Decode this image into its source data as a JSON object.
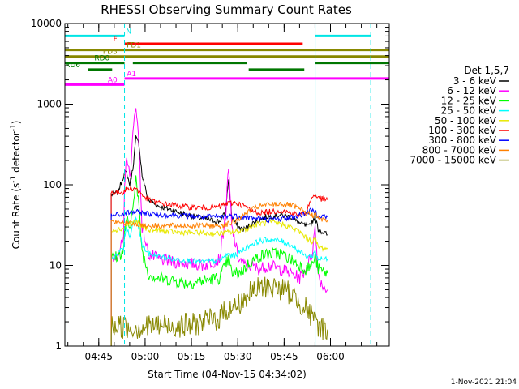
{
  "chart_data": {
    "type": "line",
    "title": "RHESSI Observing Summary Count Rates",
    "xlabel": "Start Time (04-Nov-15 04:34:02)",
    "ylabel_main": "Count Rate (s",
    "ylabel_sup1": "-1",
    "ylabel_mid": " detector",
    "ylabel_sup2": "-1",
    "ylabel_end": ")",
    "y_scale": "log",
    "ylim": [
      1,
      10000
    ],
    "xlim_minutes": [
      0,
      105
    ],
    "y_ticks": [
      {
        "v": 1,
        "label": "1"
      },
      {
        "v": 10,
        "label": "10"
      },
      {
        "v": 100,
        "label": "100"
      },
      {
        "v": 1000,
        "label": "1000"
      },
      {
        "v": 10000,
        "label": "10000"
      }
    ],
    "x_ticks": [
      {
        "m": 10.97,
        "label": "04:45"
      },
      {
        "m": 25.97,
        "label": "05:00"
      },
      {
        "m": 40.97,
        "label": "05:15"
      },
      {
        "m": 55.97,
        "label": "05:30"
      },
      {
        "m": 70.97,
        "label": "05:45"
      },
      {
        "m": 85.97,
        "label": "06:00"
      }
    ],
    "legend_title": "Det 1,5,7",
    "legend_position": "right",
    "grid": false,
    "timestamp": "1-Nov-2021 21:04",
    "vlines": [
      {
        "m": 0.4,
        "color": "#00e5e5",
        "dash": false
      },
      {
        "m": 19.3,
        "color": "#00e5e5",
        "dash": true
      },
      {
        "m": 81.0,
        "color": "#00e5e5",
        "dash": false
      },
      {
        "m": 99.0,
        "color": "#00e5e5",
        "dash": true
      }
    ],
    "flags": [
      {
        "label": "N",
        "color": "#00e5e5",
        "segments": [
          [
            0,
            19.3
          ],
          [
            81.0,
            99.0
          ]
        ],
        "level": 7000,
        "label_side": "right",
        "label_m": 19.8
      },
      {
        "label": "F",
        "color": "#ff0000",
        "segments": [
          [
            19.3,
            77.0
          ]
        ],
        "level": 5600,
        "label_side": "left",
        "label_m": 17.0
      },
      {
        "label": "FD1",
        "color": "#888800",
        "segments": [
          [
            0,
            105
          ]
        ],
        "level": 4700,
        "label_side": "right",
        "label_m": 20.0
      },
      {
        "label": "FD3",
        "color": "#888800",
        "segments": [
          [
            0,
            105
          ]
        ],
        "level": 3900,
        "label_side": "left",
        "label_m": 17.0
      },
      {
        "label": "RD0",
        "color": "#007700",
        "segments": [
          [
            0,
            19.3
          ],
          [
            22.0,
            59.0
          ],
          [
            81.0,
            105
          ]
        ],
        "level": 3250,
        "label_side": "left",
        "label_m": 14.5
      },
      {
        "label": "RD6",
        "color": "#007700",
        "segments": [
          [
            7.5,
            15.3
          ],
          [
            59.5,
            77.5
          ]
        ],
        "level": 2680,
        "label_side": "left",
        "label_m": 5.0
      },
      {
        "label": "A0",
        "color": "#ff00ff",
        "segments": [
          [
            0,
            19.3
          ]
        ],
        "level": 1750,
        "label_side": "left",
        "label_m": 17.0
      },
      {
        "label": "A1",
        "color": "#ff00ff",
        "segments": [
          [
            19.3,
            105
          ]
        ],
        "level": 2080,
        "label_side": "right",
        "label_m": 20.0
      }
    ],
    "series": [
      {
        "name": "3 - 6 keV",
        "color": "#000000",
        "points": [
          [
            15.0,
            75
          ],
          [
            17,
            80
          ],
          [
            18,
            100
          ],
          [
            19.3,
            140
          ],
          [
            20,
            140
          ],
          [
            21,
            100
          ],
          [
            22,
            160
          ],
          [
            23,
            380
          ],
          [
            24,
            320
          ],
          [
            25,
            130
          ],
          [
            27,
            65
          ],
          [
            30,
            55
          ],
          [
            35,
            48
          ],
          [
            40,
            42
          ],
          [
            45,
            38
          ],
          [
            50,
            35
          ],
          [
            52,
            45
          ],
          [
            53,
            120
          ],
          [
            54,
            40
          ],
          [
            56,
            30
          ],
          [
            58,
            28
          ],
          [
            60,
            32
          ],
          [
            65,
            40
          ],
          [
            70,
            42
          ],
          [
            73,
            40
          ],
          [
            75,
            35
          ],
          [
            77,
            32
          ],
          [
            79,
            30
          ],
          [
            80,
            35
          ],
          [
            81,
            40
          ],
          [
            82,
            28
          ],
          [
            85,
            24
          ]
        ]
      },
      {
        "name": "6 - 12 keV",
        "color": "#ff00ff",
        "points": [
          [
            15.0,
            12
          ],
          [
            17,
            14
          ],
          [
            19,
            20
          ],
          [
            19.3,
            80
          ],
          [
            20,
            250
          ],
          [
            21,
            120
          ],
          [
            22,
            400
          ],
          [
            23,
            1050
          ],
          [
            24,
            300
          ],
          [
            25,
            30
          ],
          [
            27,
            14
          ],
          [
            30,
            12
          ],
          [
            35,
            11
          ],
          [
            40,
            10.5
          ],
          [
            45,
            10
          ],
          [
            50,
            12
          ],
          [
            52,
            40
          ],
          [
            53,
            160
          ],
          [
            54,
            30
          ],
          [
            56,
            13
          ],
          [
            58,
            10
          ],
          [
            60,
            10
          ],
          [
            63,
            9
          ],
          [
            66,
            10
          ],
          [
            70,
            9
          ],
          [
            73,
            8
          ],
          [
            76,
            7
          ],
          [
            78,
            9
          ],
          [
            80,
            14
          ],
          [
            81,
            30
          ],
          [
            82,
            8
          ],
          [
            83,
            6
          ],
          [
            85,
            5
          ]
        ]
      },
      {
        "name": "12 - 25 keV",
        "color": "#00ff00",
        "points": [
          [
            15.0,
            12
          ],
          [
            17,
            13
          ],
          [
            19,
            15
          ],
          [
            19.3,
            25
          ],
          [
            20,
            40
          ],
          [
            21,
            25
          ],
          [
            22,
            60
          ],
          [
            23,
            120
          ],
          [
            24,
            50
          ],
          [
            25,
            15
          ],
          [
            27,
            8
          ],
          [
            30,
            7
          ],
          [
            35,
            6.5
          ],
          [
            40,
            6
          ],
          [
            45,
            6.5
          ],
          [
            50,
            7
          ],
          [
            52,
            10
          ],
          [
            53,
            12
          ],
          [
            54,
            8
          ],
          [
            56,
            8
          ],
          [
            58,
            9
          ],
          [
            60,
            11
          ],
          [
            63,
            13
          ],
          [
            66,
            14
          ],
          [
            70,
            14
          ],
          [
            73,
            12
          ],
          [
            76,
            10
          ],
          [
            78,
            9
          ],
          [
            80,
            10
          ],
          [
            81,
            13
          ],
          [
            82,
            9
          ],
          [
            85,
            8
          ]
        ]
      },
      {
        "name": "25 - 50 keV",
        "color": "#00ffff",
        "points": [
          [
            15.0,
            12
          ],
          [
            17,
            14
          ],
          [
            19,
            16
          ],
          [
            19.3,
            22
          ],
          [
            20,
            30
          ],
          [
            21,
            22
          ],
          [
            22,
            32
          ],
          [
            23,
            38
          ],
          [
            24,
            28
          ],
          [
            25,
            18
          ],
          [
            27,
            14
          ],
          [
            30,
            13
          ],
          [
            35,
            12
          ],
          [
            40,
            11.5
          ],
          [
            45,
            11
          ],
          [
            50,
            11.5
          ],
          [
            52,
            13
          ],
          [
            53,
            14
          ],
          [
            54,
            13
          ],
          [
            56,
            14
          ],
          [
            58,
            16
          ],
          [
            60,
            18
          ],
          [
            63,
            20
          ],
          [
            66,
            21
          ],
          [
            70,
            20
          ],
          [
            73,
            18
          ],
          [
            76,
            15
          ],
          [
            78,
            13
          ],
          [
            80,
            13
          ],
          [
            81,
            15
          ],
          [
            82,
            12
          ],
          [
            85,
            12
          ]
        ]
      },
      {
        "name": "50 - 100 keV",
        "color": "#e8e800",
        "points": [
          [
            15.0,
            28
          ],
          [
            17,
            28
          ],
          [
            19,
            29
          ],
          [
            19.3,
            30
          ],
          [
            20,
            32
          ],
          [
            22,
            34
          ],
          [
            23,
            35
          ],
          [
            25,
            30
          ],
          [
            27,
            28
          ],
          [
            30,
            27
          ],
          [
            35,
            26
          ],
          [
            40,
            25.5
          ],
          [
            45,
            25
          ],
          [
            50,
            25
          ],
          [
            52,
            25.5
          ],
          [
            55,
            26
          ],
          [
            58,
            28
          ],
          [
            60,
            30
          ],
          [
            63,
            33
          ],
          [
            66,
            34
          ],
          [
            70,
            33
          ],
          [
            73,
            30
          ],
          [
            76,
            26
          ],
          [
            78,
            22
          ],
          [
            80,
            20
          ],
          [
            81,
            21
          ],
          [
            82,
            17
          ],
          [
            85,
            16
          ]
        ]
      },
      {
        "name": "100 - 300 keV",
        "color": "#ff0000",
        "points": [
          [
            15.0,
            80
          ],
          [
            17,
            80
          ],
          [
            19,
            82
          ],
          [
            19.3,
            85
          ],
          [
            20,
            88
          ],
          [
            22,
            90
          ],
          [
            23,
            90
          ],
          [
            25,
            75
          ],
          [
            27,
            65
          ],
          [
            30,
            60
          ],
          [
            35,
            56
          ],
          [
            40,
            53
          ],
          [
            45,
            52
          ],
          [
            50,
            53
          ],
          [
            52,
            58
          ],
          [
            55,
            60
          ],
          [
            58,
            55
          ],
          [
            60,
            48
          ],
          [
            63,
            45
          ],
          [
            66,
            46
          ],
          [
            70,
            48
          ],
          [
            73,
            45
          ],
          [
            76,
            42
          ],
          [
            78,
            45
          ],
          [
            80,
            70
          ],
          [
            81,
            75
          ],
          [
            82,
            68
          ],
          [
            85,
            65
          ]
        ]
      },
      {
        "name": "300 - 800 keV",
        "color": "#0000ff",
        "points": [
          [
            15.0,
            42
          ],
          [
            17,
            42
          ],
          [
            19,
            43
          ],
          [
            19.3,
            44
          ],
          [
            20,
            45
          ],
          [
            22,
            46
          ],
          [
            23,
            46
          ],
          [
            25,
            45
          ],
          [
            27,
            44
          ],
          [
            30,
            43
          ],
          [
            35,
            42
          ],
          [
            40,
            41
          ],
          [
            45,
            40
          ],
          [
            50,
            40
          ],
          [
            52,
            41
          ],
          [
            55,
            41
          ],
          [
            58,
            40
          ],
          [
            60,
            39
          ],
          [
            63,
            38
          ],
          [
            66,
            37
          ],
          [
            70,
            38
          ],
          [
            73,
            39
          ],
          [
            76,
            42
          ],
          [
            78,
            45
          ],
          [
            80,
            48
          ],
          [
            81,
            47
          ],
          [
            82,
            42
          ],
          [
            85,
            40
          ]
        ]
      },
      {
        "name": "800 - 7000 keV",
        "color": "#ff8000",
        "points": [
          [
            15.0,
            35
          ],
          [
            17,
            34
          ],
          [
            19,
            34
          ],
          [
            19.3,
            34
          ],
          [
            20,
            33
          ],
          [
            22,
            33
          ],
          [
            25,
            32
          ],
          [
            27,
            31
          ],
          [
            30,
            31
          ],
          [
            35,
            31
          ],
          [
            40,
            31
          ],
          [
            45,
            31
          ],
          [
            50,
            31
          ],
          [
            52,
            32
          ],
          [
            55,
            35
          ],
          [
            58,
            42
          ],
          [
            60,
            48
          ],
          [
            63,
            54
          ],
          [
            66,
            57
          ],
          [
            70,
            58
          ],
          [
            73,
            56
          ],
          [
            76,
            50
          ],
          [
            78,
            45
          ],
          [
            80,
            42
          ],
          [
            81,
            43
          ],
          [
            82,
            38
          ],
          [
            85,
            36
          ]
        ]
      },
      {
        "name": "7000 - 15000 keV",
        "color": "#888800",
        "points": [
          [
            15.0,
            1.7
          ],
          [
            17,
            1.8
          ],
          [
            20,
            1.7
          ],
          [
            25,
            1.7
          ],
          [
            30,
            1.8
          ],
          [
            35,
            1.8
          ],
          [
            40,
            1.8
          ],
          [
            45,
            2
          ],
          [
            50,
            2.2
          ],
          [
            52,
            2.8
          ],
          [
            55,
            3
          ],
          [
            57,
            3.5
          ],
          [
            60,
            4.5
          ],
          [
            63,
            5.2
          ],
          [
            66,
            5.5
          ],
          [
            70,
            5.2
          ],
          [
            73,
            4.5
          ],
          [
            76,
            3.5
          ],
          [
            78,
            3
          ],
          [
            80,
            2.2
          ],
          [
            82,
            1.8
          ],
          [
            85,
            1.6
          ]
        ]
      }
    ]
  }
}
